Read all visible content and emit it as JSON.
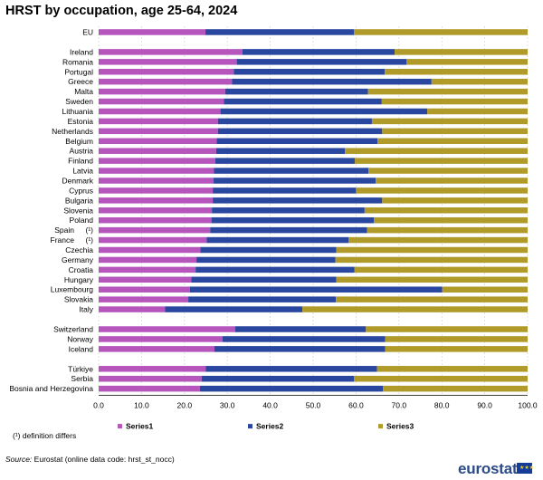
{
  "title": "HRST by occupation, age 25-64, 2024",
  "footnote": "(¹) definition differs",
  "source": {
    "label": "Source:",
    "text": "Eurostat (online data code: hrst_st_nocc)"
  },
  "brand": "eurostat",
  "chart_data": {
    "type": "bar",
    "orientation": "horizontal",
    "stacked": true,
    "title": "HRST by occupation, age 25-64, 2024",
    "xlabel": "",
    "ylabel": "",
    "xlim": [
      0,
      100
    ],
    "xticks": [
      "0.0",
      "10.0",
      "20.0",
      "30.0",
      "40.0",
      "50.0",
      "60.0",
      "70.0",
      "80.0",
      "90.0",
      "100.0"
    ],
    "grid": true,
    "legend_position": "bottom",
    "categories": [
      "EU",
      "Ireland",
      "Romania",
      "Portugal",
      "Greece",
      "Malta",
      "Sweden",
      "Lithuania",
      "Estonia",
      "Netherlands",
      "Belgium",
      "Austria",
      "Finland",
      "Latvia",
      "Denmark",
      "Cyprus",
      "Bulgaria",
      "Slovenia",
      "Poland",
      "Spain",
      "France",
      "Czechia",
      "Germany",
      "Croatia",
      "Hungary",
      "Luxembourg",
      "Slovakia",
      "Italy",
      "Switzerland",
      "Norway",
      "Iceland",
      "Türkiye",
      "Serbia",
      "Bosnia and Herzegovina"
    ],
    "groups": [
      1,
      27,
      3,
      3
    ],
    "annotations": {
      "Spain": "(¹)",
      "France": "(¹)"
    },
    "series": [
      {
        "name": "Series1",
        "color": "#b656bd",
        "values": [
          24.9,
          33.5,
          32.2,
          31.5,
          31.1,
          29.5,
          29.2,
          28.4,
          27.8,
          27.8,
          27.5,
          27.4,
          27.2,
          26.9,
          26.8,
          26.6,
          26.6,
          26.4,
          26.3,
          26.0,
          25.2,
          23.7,
          22.8,
          22.6,
          21.6,
          21.3,
          20.9,
          15.5,
          31.8,
          28.9,
          27.0,
          25.0,
          24.0,
          23.6
        ]
      },
      {
        "name": "Series2",
        "color": "#2a47a0",
        "values": [
          34.6,
          35.5,
          39.6,
          35.2,
          46.5,
          33.3,
          36.8,
          48.2,
          35.9,
          38.3,
          37.5,
          30.0,
          32.5,
          36.0,
          37.8,
          33.4,
          39.5,
          35.6,
          37.9,
          36.6,
          33.1,
          31.7,
          32.4,
          37.0,
          33.8,
          58.8,
          34.4,
          32.0,
          30.5,
          37.9,
          39.8,
          39.9,
          35.5,
          42.7
        ]
      },
      {
        "name": "Series3",
        "color": "#b09a2a",
        "values": [
          40.5,
          31.0,
          28.2,
          33.3,
          22.4,
          37.2,
          34.0,
          23.4,
          36.3,
          33.9,
          35.0,
          42.6,
          40.3,
          37.1,
          35.4,
          40.0,
          33.9,
          38.0,
          35.8,
          37.4,
          41.7,
          44.6,
          44.8,
          40.4,
          44.6,
          19.9,
          44.7,
          52.5,
          37.7,
          33.2,
          33.2,
          35.1,
          40.5,
          33.7
        ]
      }
    ]
  }
}
